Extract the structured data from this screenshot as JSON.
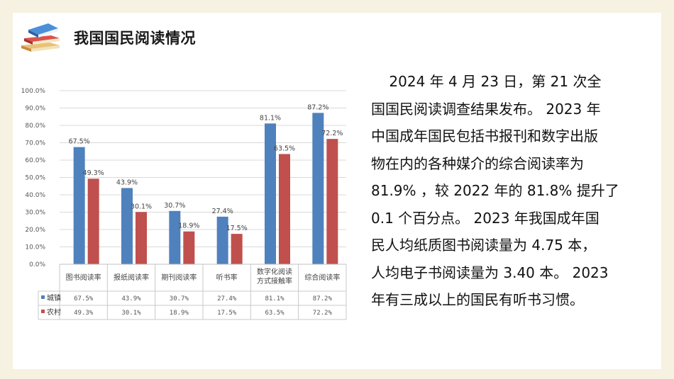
{
  "header": {
    "title": "我国国民阅读情况",
    "icon": "books-icon"
  },
  "body_text": [
    "    2024 年 4 月 23 日，第 21 次全",
    "国国民阅读调查结果发布。 2023 年",
    "中国成年国民包括书报刊和数字出版",
    "物在内的各种媒介的综合阅读率为",
    "81.9% ，较 2022 年的 81.8% 提升了",
    "0.1 个百分点。 2023 年我国成年国",
    "民人均纸质图书阅读量为 4.75 本，",
    "人均电子书阅读量为 3.40 本。 2023",
    "年有三成以上的国民有听书习惯。"
  ],
  "chart_data": {
    "type": "bar",
    "categories": [
      "图书阅读率",
      "报纸阅读率",
      "期刊阅读率",
      "听书率",
      "数字化阅读方式接触率",
      "综合阅读率"
    ],
    "category_lines": [
      [
        "图书阅读率"
      ],
      [
        "报纸阅读率"
      ],
      [
        "期刊阅读率"
      ],
      [
        "听书率"
      ],
      [
        "数字化阅读",
        "方式接触率"
      ],
      [
        "综合阅读率"
      ]
    ],
    "series": [
      {
        "name": "城镇",
        "values": [
          67.5,
          43.9,
          30.7,
          27.4,
          81.1,
          87.2
        ],
        "color": "#4f81bd"
      },
      {
        "name": "农村",
        "values": [
          49.3,
          30.1,
          18.9,
          17.5,
          63.5,
          72.2
        ],
        "color": "#c0504d"
      }
    ],
    "y_ticks": [
      "0.0%",
      "10.0%",
      "20.0%",
      "30.0%",
      "40.0%",
      "50.0%",
      "60.0%",
      "70.0%",
      "80.0%",
      "90.0%",
      "100.0%"
    ],
    "ylim": [
      0,
      100
    ],
    "value_format": "%",
    "table_values": [
      [
        "67.5%",
        "43.9%",
        "30.7%",
        "27.4%",
        "81.1%",
        "87.2%"
      ],
      [
        "49.3%",
        "30.1%",
        "18.9%",
        "17.5%",
        "63.5%",
        "72.2%"
      ]
    ],
    "legend": "table-below",
    "grid": true
  }
}
